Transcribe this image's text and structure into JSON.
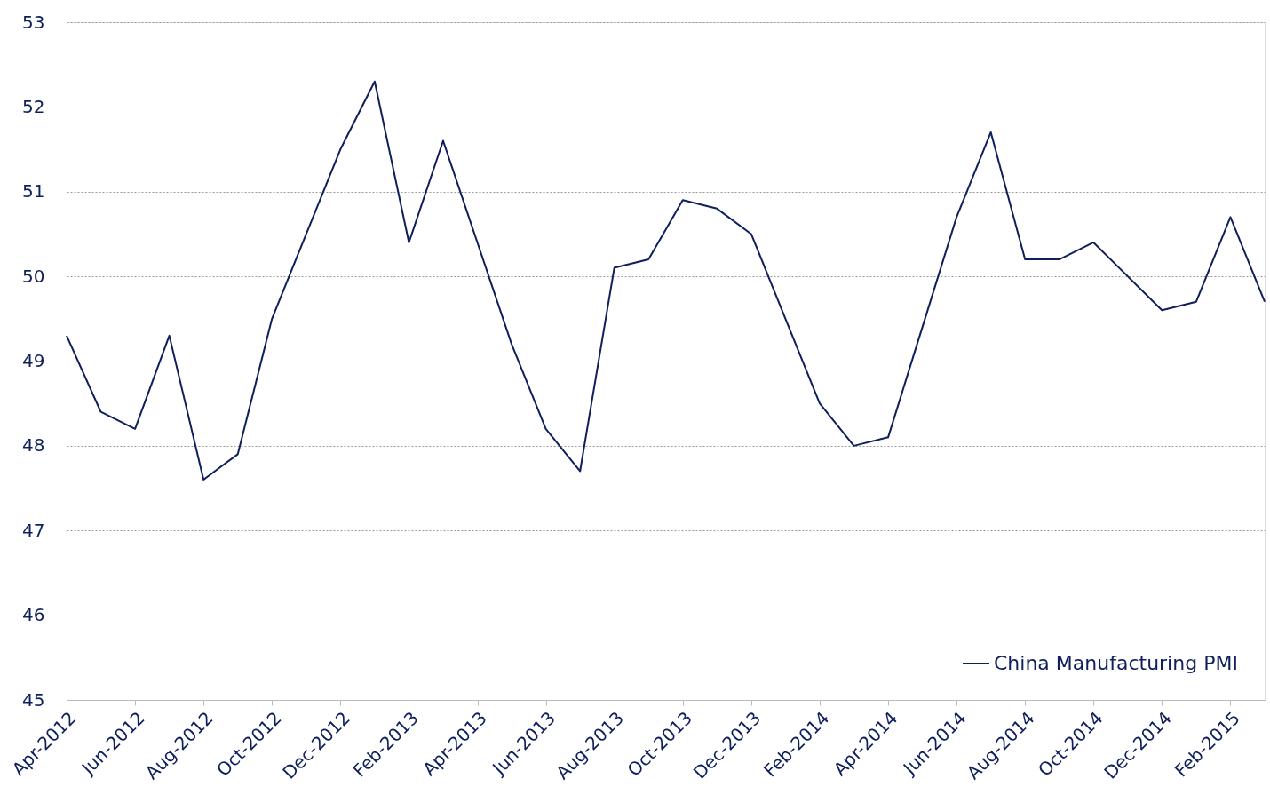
{
  "chart_data": {
    "type": "line",
    "categories": [
      "Apr-2012",
      null,
      "Jun-2012",
      null,
      "Aug-2012",
      null,
      "Oct-2012",
      null,
      "Dec-2012",
      null,
      "Feb-2013",
      null,
      "Apr-2013",
      null,
      "Jun-2013",
      null,
      "Aug-2013",
      null,
      "Oct-2013",
      null,
      "Dec-2013",
      null,
      "Feb-2014",
      null,
      "Apr-2014",
      null,
      "Jun-2014",
      null,
      "Aug-2014",
      null,
      "Oct-2014",
      null,
      "Dec-2014",
      null,
      "Feb-2015",
      null
    ],
    "series": [
      {
        "name": "China Manufacturing PMI",
        "color": "#0f1f5c",
        "values": [
          49.3,
          48.4,
          48.2,
          49.3,
          47.6,
          47.9,
          49.5,
          50.5,
          51.5,
          52.3,
          50.4,
          51.6,
          50.4,
          49.2,
          48.2,
          47.7,
          50.1,
          50.2,
          50.9,
          50.8,
          50.5,
          49.5,
          48.5,
          48.0,
          48.1,
          49.4,
          50.7,
          51.7,
          50.2,
          50.2,
          50.4,
          50.0,
          49.6,
          49.7,
          50.7,
          49.7
        ]
      }
    ],
    "ylim": [
      45,
      53
    ],
    "yticks": [
      45,
      46,
      47,
      48,
      49,
      50,
      51,
      52,
      53
    ],
    "grid": "y",
    "legend": "bottom right",
    "marker": "none",
    "line_style": "solid"
  }
}
